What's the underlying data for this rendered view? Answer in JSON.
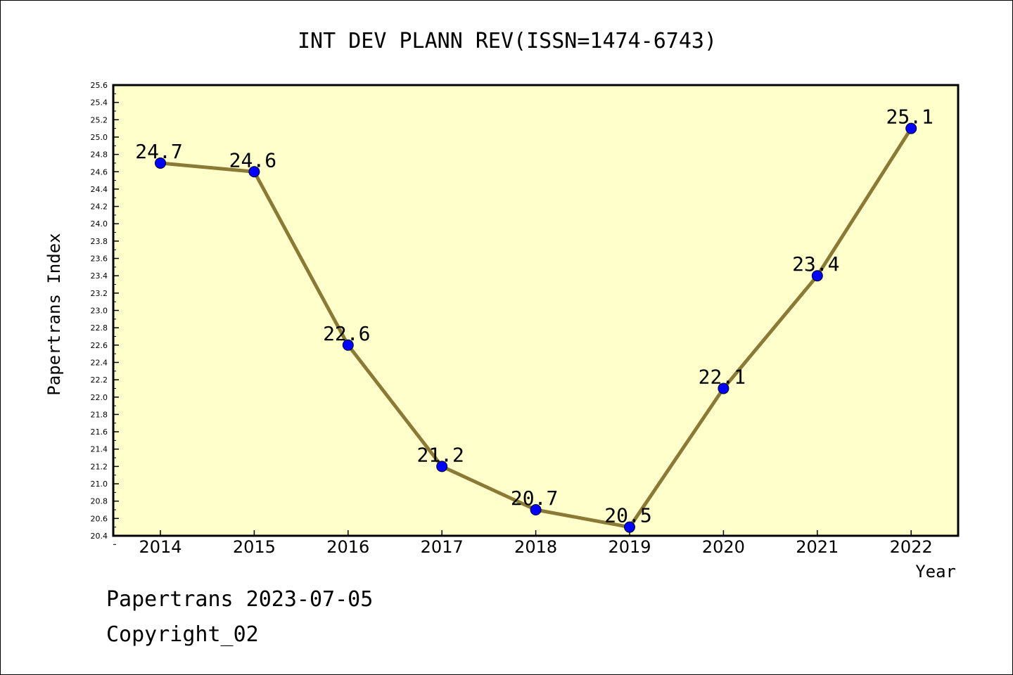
{
  "chart_data": {
    "type": "line",
    "title": "INT DEV PLANN REV(ISSN=1474-6743)",
    "xlabel": "Year",
    "ylabel": "Papertrans Index",
    "categories": [
      "2014",
      "2015",
      "2016",
      "2017",
      "2018",
      "2019",
      "2020",
      "2021",
      "2022"
    ],
    "values": [
      24.7,
      24.6,
      22.6,
      21.2,
      20.7,
      20.5,
      22.1,
      23.4,
      25.1
    ],
    "data_labels": [
      "24.7",
      "24.6",
      "22.6",
      "21.2",
      "20.7",
      "20.5",
      "22.1",
      "23.4",
      "25.1"
    ],
    "ylim": [
      20.4,
      25.6
    ],
    "ytick_step": 0.2,
    "grid": false,
    "legend": "none",
    "colors": {
      "plot_background": "#ffffcc",
      "line": "#8b7a36",
      "marker": "#0000ff"
    }
  },
  "footer": {
    "date_line": "Papertrans 2023-07-05",
    "copyright_line": "Copyright_02"
  }
}
